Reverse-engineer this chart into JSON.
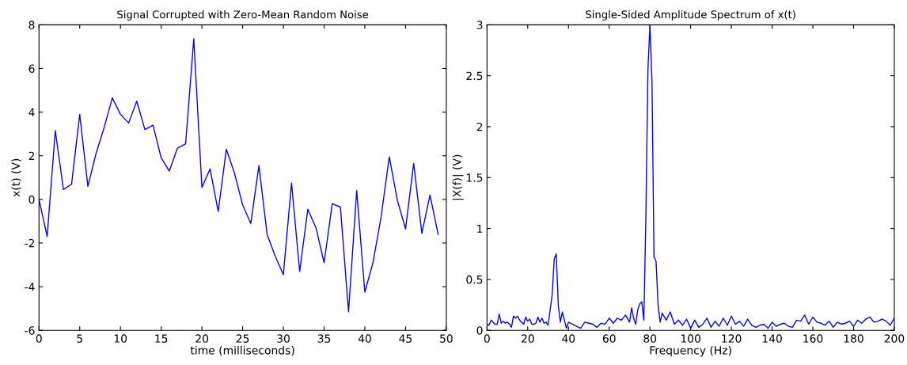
{
  "chart_data": [
    {
      "type": "line",
      "title": "Signal Corrupted with Zero-Mean Random Noise",
      "xlabel": "time (milliseconds)",
      "ylabel": "x(t) (V)",
      "x": [
        0,
        1,
        2,
        3,
        4,
        5,
        6,
        7,
        8,
        9,
        10,
        11,
        12,
        13,
        14,
        15,
        16,
        17,
        18,
        19,
        20,
        21,
        22,
        23,
        24,
        25,
        26,
        27,
        28,
        29,
        30,
        31,
        32,
        33,
        34,
        35,
        36,
        37,
        38,
        39,
        40,
        41,
        42,
        43,
        44,
        45,
        46,
        47,
        48,
        49
      ],
      "series": [
        {
          "color": "#0000ff",
          "values": [
            0,
            -1.7,
            3.15,
            0.45,
            0.7,
            3.9,
            0.6,
            2.1,
            3.3,
            4.65,
            3.9,
            3.5,
            4.5,
            3.2,
            3.4,
            1.9,
            1.3,
            2.35,
            2.55,
            7.35,
            0.55,
            1.4,
            -0.55,
            2.3,
            1.2,
            -0.25,
            -1.1,
            1.55,
            -1.6,
            -2.6,
            -3.45,
            0.75,
            -3.3,
            -0.45,
            -1.3,
            -2.9,
            -0.2,
            -0.35,
            -5.15,
            0.4,
            -4.25,
            -2.9,
            -0.8,
            1.95,
            -0.05,
            -1.35,
            1.65,
            -1.55,
            0.2,
            -1.6
          ]
        }
      ],
      "xlim": [
        0,
        50
      ],
      "xticks": [
        0,
        5,
        10,
        15,
        20,
        25,
        30,
        35,
        40,
        45,
        50
      ],
      "ylim": [
        -6,
        8
      ],
      "yticks": [
        -6,
        -4,
        -2,
        0,
        2,
        4,
        6,
        8
      ],
      "grid": false
    },
    {
      "type": "line",
      "title": "Single-Sided Amplitude Spectrum of x(t)",
      "xlabel": "Frequency (Hz)",
      "ylabel": "|X(f)| (V)",
      "x": [
        0,
        1,
        2,
        3,
        4,
        5,
        6,
        7,
        8,
        9,
        10,
        11,
        12,
        13,
        14,
        15,
        16,
        17,
        18,
        19,
        20,
        21,
        22,
        23,
        24,
        25,
        26,
        27,
        28,
        29,
        30,
        31,
        32,
        33,
        34,
        35,
        36,
        37,
        38,
        39,
        40,
        42,
        44,
        46,
        48,
        50,
        52,
        54,
        56,
        58,
        60,
        62,
        64,
        66,
        68,
        70,
        71,
        72,
        73,
        74,
        75,
        76,
        77,
        78,
        79,
        80,
        81,
        82,
        83,
        84,
        85,
        86,
        88,
        90,
        92,
        94,
        96,
        98,
        100,
        102,
        104,
        106,
        108,
        110,
        112,
        114,
        116,
        118,
        120,
        122,
        124,
        126,
        128,
        130,
        132,
        134,
        136,
        138,
        140,
        142,
        144,
        146,
        148,
        150,
        152,
        154,
        156,
        158,
        160,
        162,
        164,
        166,
        168,
        170,
        172,
        174,
        176,
        178,
        180,
        182,
        184,
        186,
        188,
        190,
        192,
        194,
        196,
        198,
        200
      ],
      "series": [
        {
          "color": "#0000ff",
          "values": [
            0.06,
            0.05,
            0.1,
            0.08,
            0.06,
            0.06,
            0.16,
            0.07,
            0.09,
            0.07,
            0.08,
            0.06,
            0.03,
            0.14,
            0.12,
            0.14,
            0.1,
            0.08,
            0.06,
            0.13,
            0.09,
            0.11,
            0.06,
            0.06,
            0.07,
            0.13,
            0.08,
            0.12,
            0.07,
            0.08,
            0.05,
            0.2,
            0.35,
            0.7,
            0.75,
            0.25,
            0.08,
            0.18,
            0.1,
            0.02,
            0.08,
            0.06,
            0.04,
            0.02,
            0.08,
            0.07,
            0.06,
            0.03,
            0.07,
            0.06,
            0.12,
            0.07,
            0.12,
            0.1,
            0.15,
            0.08,
            0.22,
            0.12,
            0.06,
            0.2,
            0.26,
            0.28,
            0.1,
            1.1,
            2.55,
            3.0,
            2.45,
            0.72,
            0.68,
            0.25,
            0.08,
            0.17,
            0.1,
            0.18,
            0.06,
            0.1,
            0.05,
            0.11,
            0.02,
            0.1,
            0.03,
            0.06,
            0.12,
            0.03,
            0.09,
            0.04,
            0.12,
            0.05,
            0.14,
            0.06,
            0.09,
            0.04,
            0.11,
            0.05,
            0.03,
            0.05,
            0.06,
            0.02,
            0.08,
            0.04,
            0.06,
            0.07,
            0.04,
            0.03,
            0.1,
            0.09,
            0.15,
            0.06,
            0.13,
            0.08,
            0.07,
            0.05,
            0.09,
            0.03,
            0.08,
            0.06,
            0.07,
            0.09,
            0.04,
            0.1,
            0.07,
            0.11,
            0.13,
            0.08,
            0.09,
            0.11,
            0.09,
            0.05,
            0.12
          ]
        }
      ],
      "xlim": [
        0,
        200
      ],
      "xticks": [
        0,
        20,
        40,
        60,
        80,
        100,
        120,
        140,
        160,
        180,
        200
      ],
      "ylim": [
        0,
        3
      ],
      "yticks": [
        0,
        0.5,
        1,
        1.5,
        2,
        2.5,
        3
      ],
      "grid": false
    }
  ]
}
